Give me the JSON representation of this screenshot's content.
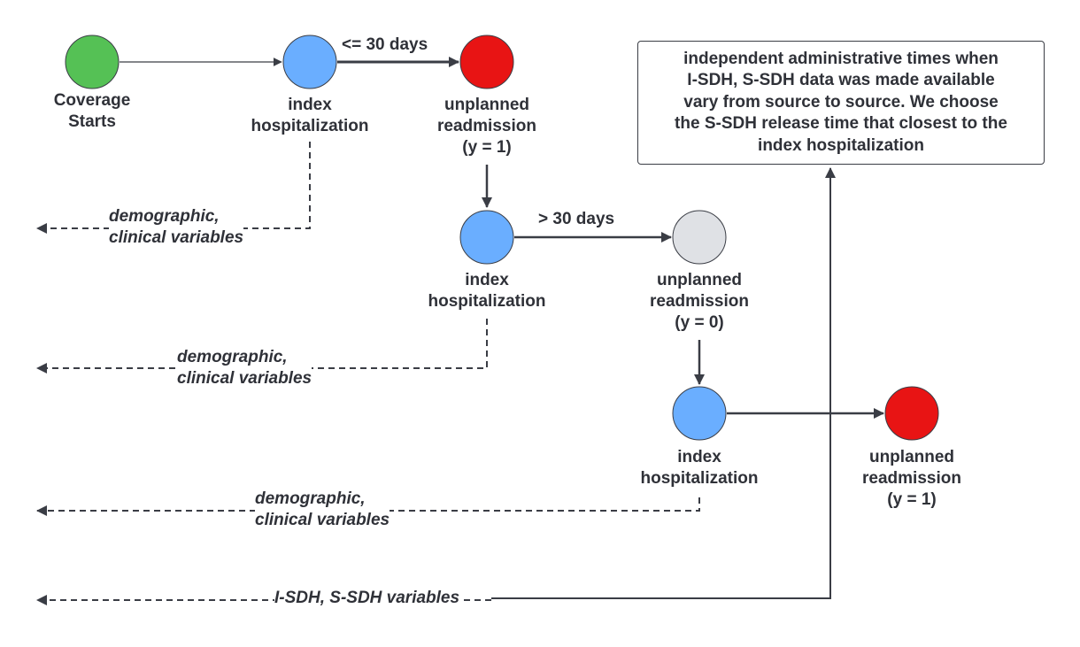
{
  "colors": {
    "coverage": "#55c155",
    "index": "#6aaeff",
    "readmit_positive": "#e81414",
    "readmit_negative": "#dfe1e5",
    "stroke": "#3a3d45"
  },
  "nodes": {
    "coverage_start": {
      "line1": "Coverage",
      "line2": "Starts"
    },
    "index_1": {
      "line1": "index",
      "line2": "hospitalization"
    },
    "readmission_1": {
      "line1": "unplanned",
      "line2": "readmission",
      "line3": "(y = 1)"
    },
    "index_2": {
      "line1": "index",
      "line2": "hospitalization"
    },
    "readmission_2": {
      "line1": "unplanned",
      "line2": "readmission",
      "line3": "(y = 0)"
    },
    "index_3": {
      "line1": "index",
      "line2": "hospitalization"
    },
    "readmission_3": {
      "line1": "unplanned",
      "line2": "readmission",
      "line3": "(y = 1)"
    }
  },
  "edges": {
    "within_30": "<= 30 days",
    "over_30": "> 30 days"
  },
  "variables": {
    "row1": {
      "line1": "demographic,",
      "line2": "clinical variables"
    },
    "row2": {
      "line1": "demographic,",
      "line2": "clinical variables"
    },
    "row3": {
      "line1": "demographic,",
      "line2": "clinical variables"
    },
    "sdh": "I-SDH, S-SDH variables"
  },
  "note": {
    "line1": "independent administrative times when",
    "line2": "I-SDH, S-SDH data was made available",
    "line3": "vary from source to source. We choose",
    "line4": "the S-SDH release time that closest to the",
    "line5": "index hospitalization"
  }
}
